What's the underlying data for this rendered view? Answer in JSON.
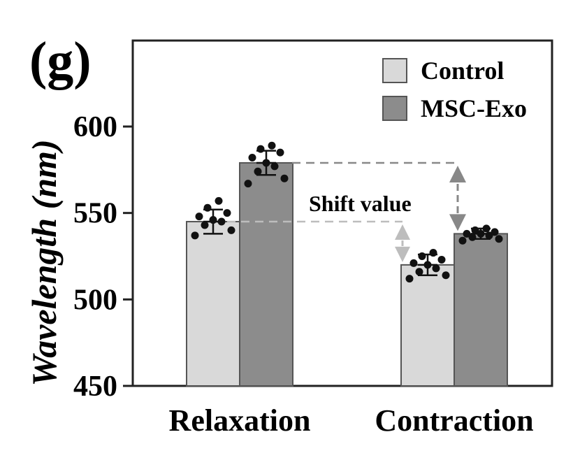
{
  "panel_label": "(g)",
  "annotation": "Shift value",
  "colors": {
    "control": "#d9d9d9",
    "msc_exo": "#8c8c8c",
    "dashed_dark": "#888888",
    "dashed_light": "#bdbdbd",
    "axis": "#222222"
  },
  "chart_data": {
    "type": "bar",
    "title": "",
    "xlabel": "",
    "ylabel": "Wavelength (nm)",
    "ylim": [
      450,
      600
    ],
    "yticks": [
      450,
      500,
      550,
      600
    ],
    "categories": [
      "Relaxation",
      "Contraction"
    ],
    "legend": {
      "position": "top-right"
    },
    "grid": false,
    "series": [
      {
        "name": "Control",
        "values": [
          545,
          520
        ],
        "errors": [
          7,
          6
        ],
        "points": [
          [
            537,
            540,
            543,
            545,
            546,
            548,
            550,
            553,
            557
          ],
          [
            512,
            514,
            516,
            518,
            520,
            521,
            523,
            525,
            527
          ]
        ]
      },
      {
        "name": "MSC-Exo",
        "values": [
          579,
          538
        ],
        "errors": [
          7,
          3
        ],
        "points": [
          [
            567,
            570,
            574,
            577,
            579,
            582,
            585,
            587,
            589
          ],
          [
            534,
            535,
            536,
            537,
            538,
            538,
            539,
            540,
            541
          ]
        ]
      }
    ]
  }
}
